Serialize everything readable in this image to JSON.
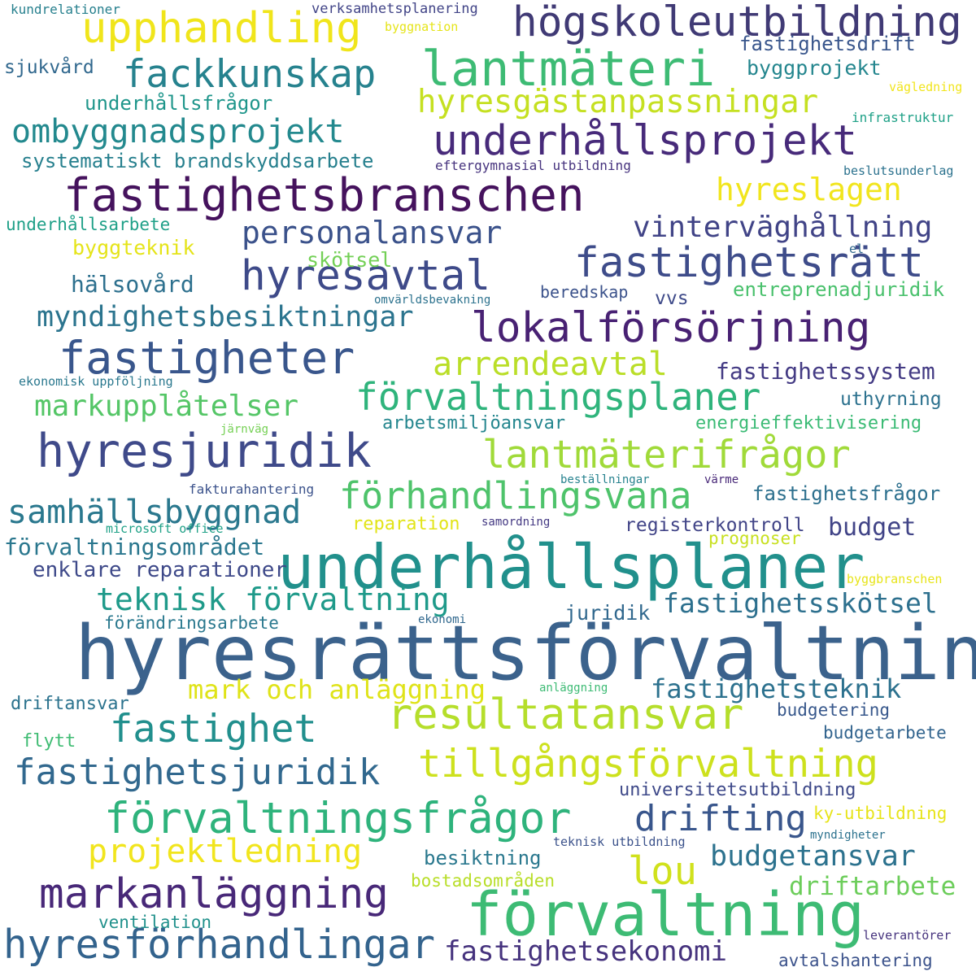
{
  "words": [
    {
      "text": "hyresrättsförvaltning",
      "color": "#3b628c"
    },
    {
      "text": "underhållsplaner",
      "color": "#21908c"
    },
    {
      "text": "förvaltning",
      "color": "#3dbb74"
    },
    {
      "text": "fastighetsbranschen",
      "color": "#45125d"
    },
    {
      "text": "lantmäteri",
      "color": "#3dbb74"
    },
    {
      "text": "hyresjuridik",
      "color": "#3f4a8a"
    },
    {
      "text": "fastigheter",
      "color": "#39568c"
    },
    {
      "text": "resultatansvar",
      "color": "#b5de2b"
    },
    {
      "text": "förvaltningsfrågor",
      "color": "#2eb37c"
    },
    {
      "text": "underhållsprojekt",
      "color": "#472a7a"
    },
    {
      "text": "högskoleutbildning",
      "color": "#403a75"
    },
    {
      "text": "lokalförsörjning",
      "color": "#482173"
    },
    {
      "text": "upphandling",
      "color": "#f0e51b"
    },
    {
      "text": "fastighetsrätt",
      "color": "#3e4c8a"
    },
    {
      "text": "hyresförhandlingar",
      "color": "#33638d"
    },
    {
      "text": "markanläggning",
      "color": "#482878"
    },
    {
      "text": "tillgångsförvaltning",
      "color": "#cde11d"
    },
    {
      "text": "fackkunskap",
      "color": "#26828e"
    },
    {
      "text": "hyresavtal",
      "color": "#3e4a89"
    },
    {
      "text": "lantmäterifrågor",
      "color": "#a0da39"
    },
    {
      "text": "förvaltningsplaner",
      "color": "#2fb47c"
    },
    {
      "text": "förhandlingsvana",
      "color": "#4ec36b"
    },
    {
      "text": "fastighet",
      "color": "#218f8d"
    },
    {
      "text": "fastighetsjuridik",
      "color": "#31688e"
    },
    {
      "text": "hyresgästanpassningar",
      "color": "#c5e021"
    },
    {
      "text": "ombyggnadsprojekt",
      "color": "#23898e"
    },
    {
      "text": "samhällsbyggnad",
      "color": "#2a788e"
    },
    {
      "text": "drifting",
      "color": "#39568c"
    },
    {
      "text": "teknisk förvaltning",
      "color": "#1f9a8a"
    },
    {
      "text": "projektledning",
      "color": "#f1e51d"
    },
    {
      "text": "arrendeavtal",
      "color": "#bade28"
    },
    {
      "text": "lou",
      "color": "#d0e11c"
    },
    {
      "text": "hyreslagen",
      "color": "#f1e51d"
    },
    {
      "text": "personalansvar",
      "color": "#3b528b"
    },
    {
      "text": "vinterväghållning",
      "color": "#414487"
    },
    {
      "text": "budgetansvar",
      "color": "#2c728e"
    },
    {
      "text": "markupplåtelser",
      "color": "#55c667"
    },
    {
      "text": "myndighetsbesiktningar",
      "color": "#2b748e"
    },
    {
      "text": "fastighetsekonomi",
      "color": "#46337e"
    },
    {
      "text": "fastighetsskötsel",
      "color": "#2d708e"
    },
    {
      "text": "mark och anläggning",
      "color": "#dfe318"
    },
    {
      "text": "fastighetsteknik",
      "color": "#2c718e"
    },
    {
      "text": "enklare reparationer",
      "color": "#3e4989"
    },
    {
      "text": "förvaltningsområdet",
      "color": "#2a778e"
    },
    {
      "text": "systematiskt brandskyddsarbete",
      "color": "#27808e"
    },
    {
      "text": "fastighetssystem",
      "color": "#443b84"
    },
    {
      "text": "budget",
      "color": "#414487"
    },
    {
      "text": "driftarbete",
      "color": "#6ccd5a"
    },
    {
      "text": "hälsovård",
      "color": "#2d708e"
    },
    {
      "text": "underhållsfrågor",
      "color": "#1f968b"
    },
    {
      "text": "fastighetsdrift",
      "color": "#39568c"
    },
    {
      "text": "byggprojekt",
      "color": "#24868e"
    },
    {
      "text": "underhållsarbete",
      "color": "#1fa088"
    },
    {
      "text": "byggteknik",
      "color": "#e5e419"
    },
    {
      "text": "skötsel",
      "color": "#73d056"
    },
    {
      "text": "entreprenadjuridik",
      "color": "#4ac16d"
    },
    {
      "text": "arbetsmiljöansvar",
      "color": "#24868e"
    },
    {
      "text": "energieffektivisering",
      "color": "#3bbb75"
    },
    {
      "text": "uthyrning",
      "color": "#2c718e"
    },
    {
      "text": "fastighetsfrågor",
      "color": "#2d708e"
    },
    {
      "text": "registerkontroll",
      "color": "#414487"
    },
    {
      "text": "reparation",
      "color": "#e2e418"
    },
    {
      "text": "prognoser",
      "color": "#c8e020"
    },
    {
      "text": "juridik",
      "color": "#31688e"
    },
    {
      "text": "förändringsarbete",
      "color": "#2a788e"
    },
    {
      "text": "driftansvar",
      "color": "#2c738e"
    },
    {
      "text": "flytt",
      "color": "#3fbc73"
    },
    {
      "text": "universitetsutbildning",
      "color": "#3e4989"
    },
    {
      "text": "ky-utbildning",
      "color": "#e7e419"
    },
    {
      "text": "budgetering",
      "color": "#38588c"
    },
    {
      "text": "budgetarbete",
      "color": "#32648e"
    },
    {
      "text": "besiktning",
      "color": "#2a788e"
    },
    {
      "text": "bostadsområden",
      "color": "#b8de29"
    },
    {
      "text": "ventilation",
      "color": "#21918c"
    },
    {
      "text": "avtalshantering",
      "color": "#3b528b"
    },
    {
      "text": "sjukvård",
      "color": "#31688e"
    },
    {
      "text": "beredskap",
      "color": "#3b528b"
    },
    {
      "text": "vvs",
      "color": "#3e4a89"
    },
    {
      "text": "verksamhetsplanering",
      "color": "#414487"
    },
    {
      "text": "kundrelationer",
      "color": "#27808e"
    },
    {
      "text": "byggnation",
      "color": "#e5e419"
    },
    {
      "text": "vägledning",
      "color": "#f1e51d"
    },
    {
      "text": "infrastruktur",
      "color": "#1fa187"
    },
    {
      "text": "eftergymnasial utbildning",
      "color": "#46337e"
    },
    {
      "text": "beslutsunderlag",
      "color": "#2c728e"
    },
    {
      "text": "el",
      "color": "#31688e"
    },
    {
      "text": "omvärldsbevakning",
      "color": "#2c728e"
    },
    {
      "text": "ekonomisk uppföljning",
      "color": "#2a788e"
    },
    {
      "text": "järnväg",
      "color": "#75d054"
    },
    {
      "text": "fakturahantering",
      "color": "#3b528b"
    },
    {
      "text": "microsoft office",
      "color": "#1fa187"
    },
    {
      "text": "beställningar",
      "color": "#26828e"
    },
    {
      "text": "värme",
      "color": "#482878"
    },
    {
      "text": "samordning",
      "color": "#443983"
    },
    {
      "text": "byggbranschen",
      "color": "#e7e419"
    },
    {
      "text": "ekonomi",
      "color": "#31688e"
    },
    {
      "text": "anläggning",
      "color": "#3dbb74"
    },
    {
      "text": "teknisk utbildning",
      "color": "#3b528b"
    },
    {
      "text": "myndigheter",
      "color": "#2c728e"
    },
    {
      "text": "leverantörer",
      "color": "#46337e"
    }
  ]
}
